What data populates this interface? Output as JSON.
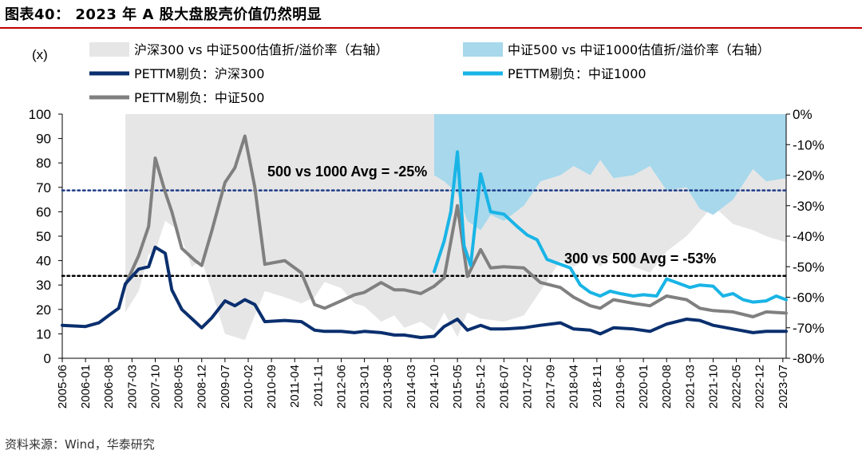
{
  "title": "图表40：  2023 年 A 股大盘股壳价值仍然明显",
  "source": "资料来源：Wind，华泰研究",
  "chart_data": {
    "type": "line",
    "y_unit_label": "(x)",
    "ylim": [
      0,
      100
    ],
    "yticks": [
      0,
      10,
      20,
      30,
      40,
      50,
      60,
      70,
      80,
      90,
      100
    ],
    "y2lim": [
      -80,
      0
    ],
    "y2ticks": [
      "0%",
      "-10%",
      "-20%",
      "-30%",
      "-40%",
      "-50%",
      "-60%",
      "-70%",
      "-80%"
    ],
    "x_start": "2005-06",
    "x_end": "2023-08",
    "xticks": [
      "2005-06",
      "2006-01",
      "2006-08",
      "2007-03",
      "2007-10",
      "2008-05",
      "2008-12",
      "2009-07",
      "2010-02",
      "2010-09",
      "2011-04",
      "2011-11",
      "2012-06",
      "2013-01",
      "2013-08",
      "2014-03",
      "2014-10",
      "2015-05",
      "2015-12",
      "2016-07",
      "2017-02",
      "2017-09",
      "2018-04",
      "2018-11",
      "2019-06",
      "2020-01",
      "2020-08",
      "2021-03",
      "2021-10",
      "2022-05",
      "2022-12",
      "2023-07"
    ],
    "colors": {
      "hs300": "#0a2f6e",
      "zz1000": "#19b4e6",
      "zz500": "#808080",
      "area1": "#e6e6e6",
      "area2": "#a7d8ec",
      "avg_line": "#1f3c88",
      "avg_line2": "#000000"
    },
    "series": [
      {
        "name": "PETTM剔负：沪深300",
        "axis": "left",
        "points": [
          [
            "2005-06",
            13.5
          ],
          [
            "2006-01",
            13.0
          ],
          [
            "2006-05",
            14.5
          ],
          [
            "2006-08",
            17.5
          ],
          [
            "2006-11",
            20.5
          ],
          [
            "2007-01",
            30.5
          ],
          [
            "2007-05",
            36.5
          ],
          [
            "2007-08",
            37.5
          ],
          [
            "2007-10",
            45.5
          ],
          [
            "2008-01",
            43.0
          ],
          [
            "2008-03",
            28.0
          ],
          [
            "2008-06",
            20.0
          ],
          [
            "2008-10",
            15.0
          ],
          [
            "2008-12",
            12.5
          ],
          [
            "2009-03",
            16.5
          ],
          [
            "2009-07",
            23.5
          ],
          [
            "2009-10",
            21.5
          ],
          [
            "2010-01",
            24.0
          ],
          [
            "2010-04",
            22.0
          ],
          [
            "2010-07",
            15.0
          ],
          [
            "2011-01",
            15.5
          ],
          [
            "2011-06",
            15.0
          ],
          [
            "2011-10",
            11.5
          ],
          [
            "2012-01",
            11.0
          ],
          [
            "2012-06",
            11.0
          ],
          [
            "2012-10",
            10.5
          ],
          [
            "2013-01",
            11.0
          ],
          [
            "2013-06",
            10.5
          ],
          [
            "2013-10",
            9.5
          ],
          [
            "2014-01",
            9.5
          ],
          [
            "2014-06",
            8.5
          ],
          [
            "2014-10",
            9.0
          ],
          [
            "2015-01",
            13.0
          ],
          [
            "2015-05",
            16.0
          ],
          [
            "2015-08",
            11.5
          ],
          [
            "2015-12",
            13.5
          ],
          [
            "2016-03",
            12.0
          ],
          [
            "2016-07",
            12.0
          ],
          [
            "2017-01",
            12.5
          ],
          [
            "2017-06",
            13.5
          ],
          [
            "2017-12",
            14.5
          ],
          [
            "2018-04",
            12.0
          ],
          [
            "2018-09",
            11.5
          ],
          [
            "2018-12",
            10.0
          ],
          [
            "2019-04",
            12.5
          ],
          [
            "2019-10",
            12.0
          ],
          [
            "2020-03",
            11.0
          ],
          [
            "2020-08",
            14.0
          ],
          [
            "2021-02",
            16.0
          ],
          [
            "2021-06",
            15.5
          ],
          [
            "2021-10",
            13.5
          ],
          [
            "2022-04",
            12.0
          ],
          [
            "2022-10",
            10.5
          ],
          [
            "2023-02",
            11.0
          ],
          [
            "2023-08",
            11.0
          ]
        ]
      },
      {
        "name": "PETTM剔负：中证1000",
        "axis": "left",
        "points": [
          [
            "2014-10",
            35.5
          ],
          [
            "2015-01",
            48.0
          ],
          [
            "2015-03",
            60.0
          ],
          [
            "2015-05",
            84.5
          ],
          [
            "2015-07",
            46.0
          ],
          [
            "2015-09",
            38.0
          ],
          [
            "2015-12",
            75.5
          ],
          [
            "2016-03",
            60.0
          ],
          [
            "2016-07",
            59.0
          ],
          [
            "2016-11",
            54.0
          ],
          [
            "2017-02",
            50.5
          ],
          [
            "2017-05",
            48.5
          ],
          [
            "2017-08",
            40.5
          ],
          [
            "2017-11",
            39.0
          ],
          [
            "2018-03",
            37.0
          ],
          [
            "2018-06",
            30.0
          ],
          [
            "2018-09",
            27.0
          ],
          [
            "2018-12",
            25.5
          ],
          [
            "2019-03",
            27.5
          ],
          [
            "2019-06",
            26.5
          ],
          [
            "2019-10",
            25.5
          ],
          [
            "2020-01",
            26.0
          ],
          [
            "2020-05",
            25.5
          ],
          [
            "2020-08",
            32.5
          ],
          [
            "2020-11",
            31.0
          ],
          [
            "2021-03",
            29.0
          ],
          [
            "2021-06",
            30.0
          ],
          [
            "2021-10",
            29.5
          ],
          [
            "2022-01",
            25.5
          ],
          [
            "2022-04",
            26.5
          ],
          [
            "2022-07",
            24.0
          ],
          [
            "2022-10",
            23.0
          ],
          [
            "2023-02",
            23.5
          ],
          [
            "2023-05",
            25.5
          ],
          [
            "2023-08",
            24.0
          ]
        ]
      },
      {
        "name": "PETTM剔负：中证500",
        "axis": "left",
        "points": [
          [
            "2007-01",
            30.0
          ],
          [
            "2007-05",
            42.0
          ],
          [
            "2007-08",
            54.0
          ],
          [
            "2007-10",
            82.0
          ],
          [
            "2008-01",
            68.0
          ],
          [
            "2008-03",
            60.0
          ],
          [
            "2008-06",
            45.0
          ],
          [
            "2008-10",
            40.0
          ],
          [
            "2008-12",
            38.0
          ],
          [
            "2009-03",
            52.0
          ],
          [
            "2009-07",
            72.0
          ],
          [
            "2009-10",
            78.0
          ],
          [
            "2010-01",
            91.0
          ],
          [
            "2010-04",
            70.0
          ],
          [
            "2010-07",
            38.5
          ],
          [
            "2011-01",
            40.0
          ],
          [
            "2011-06",
            35.0
          ],
          [
            "2011-10",
            22.0
          ],
          [
            "2012-01",
            20.5
          ],
          [
            "2012-06",
            23.5
          ],
          [
            "2012-10",
            26.0
          ],
          [
            "2013-01",
            27.0
          ],
          [
            "2013-06",
            31.0
          ],
          [
            "2013-10",
            28.0
          ],
          [
            "2014-01",
            28.0
          ],
          [
            "2014-06",
            26.5
          ],
          [
            "2014-10",
            29.5
          ],
          [
            "2015-01",
            33.0
          ],
          [
            "2015-05",
            62.5
          ],
          [
            "2015-08",
            33.5
          ],
          [
            "2015-12",
            44.5
          ],
          [
            "2016-03",
            37.0
          ],
          [
            "2016-07",
            37.5
          ],
          [
            "2017-01",
            37.0
          ],
          [
            "2017-06",
            31.0
          ],
          [
            "2017-12",
            29.0
          ],
          [
            "2018-04",
            25.0
          ],
          [
            "2018-09",
            21.5
          ],
          [
            "2018-12",
            20.5
          ],
          [
            "2019-04",
            24.0
          ],
          [
            "2019-10",
            22.5
          ],
          [
            "2020-03",
            21.5
          ],
          [
            "2020-08",
            25.5
          ],
          [
            "2021-02",
            24.0
          ],
          [
            "2021-06",
            20.5
          ],
          [
            "2021-10",
            19.5
          ],
          [
            "2022-04",
            19.0
          ],
          [
            "2022-10",
            17.0
          ],
          [
            "2023-02",
            19.0
          ],
          [
            "2023-08",
            18.5
          ]
        ]
      }
    ],
    "areas": [
      {
        "name": "沪深300 vs 中证500估值折/溢价率（右轴）",
        "axis": "right",
        "points": [
          [
            "2007-01",
            -65
          ],
          [
            "2007-05",
            -58
          ],
          [
            "2007-08",
            -46
          ],
          [
            "2007-10",
            -45
          ],
          [
            "2008-01",
            -35
          ],
          [
            "2008-05",
            -38
          ],
          [
            "2008-09",
            -50
          ],
          [
            "2008-12",
            -48
          ],
          [
            "2009-03",
            -58
          ],
          [
            "2009-07",
            -72
          ],
          [
            "2009-10",
            -73
          ],
          [
            "2010-01",
            -74
          ],
          [
            "2010-04",
            -66
          ],
          [
            "2010-07",
            -58
          ],
          [
            "2011-01",
            -60
          ],
          [
            "2011-06",
            -62
          ],
          [
            "2011-10",
            -60
          ],
          [
            "2012-01",
            -55
          ],
          [
            "2012-06",
            -57
          ],
          [
            "2012-10",
            -62
          ],
          [
            "2013-01",
            -63
          ],
          [
            "2013-06",
            -68
          ],
          [
            "2013-10",
            -66
          ],
          [
            "2014-01",
            -70
          ],
          [
            "2014-06",
            -68
          ],
          [
            "2014-10",
            -71
          ],
          [
            "2015-01",
            -65
          ],
          [
            "2015-05",
            -73
          ],
          [
            "2015-08",
            -65
          ],
          [
            "2015-12",
            -67
          ],
          [
            "2016-07",
            -68
          ],
          [
            "2017-01",
            -66
          ],
          [
            "2017-06",
            -58
          ],
          [
            "2017-12",
            -48
          ],
          [
            "2018-04",
            -50
          ],
          [
            "2018-09",
            -47
          ],
          [
            "2018-12",
            -50
          ],
          [
            "2019-04",
            -45
          ],
          [
            "2019-10",
            -50
          ],
          [
            "2020-03",
            -52
          ],
          [
            "2020-08",
            -45
          ],
          [
            "2021-02",
            -40
          ],
          [
            "2021-06",
            -35
          ],
          [
            "2021-10",
            -30
          ],
          [
            "2022-04",
            -36
          ],
          [
            "2022-10",
            -38
          ],
          [
            "2023-02",
            -40
          ],
          [
            "2023-08",
            -42
          ]
        ]
      },
      {
        "name": "中证500 vs 中证1000估值折/溢价率（右轴）",
        "axis": "right",
        "points": [
          [
            "2014-10",
            -20
          ],
          [
            "2015-01",
            -22
          ],
          [
            "2015-05",
            -26
          ],
          [
            "2015-08",
            -35
          ],
          [
            "2015-12",
            -38
          ],
          [
            "2016-03",
            -33
          ],
          [
            "2016-07",
            -35
          ],
          [
            "2017-01",
            -30
          ],
          [
            "2017-06",
            -22
          ],
          [
            "2017-12",
            -20
          ],
          [
            "2018-04",
            -17
          ],
          [
            "2018-09",
            -20
          ],
          [
            "2018-12",
            -15
          ],
          [
            "2019-04",
            -21
          ],
          [
            "2019-10",
            -20
          ],
          [
            "2020-03",
            -17
          ],
          [
            "2020-08",
            -25
          ],
          [
            "2021-02",
            -24
          ],
          [
            "2021-06",
            -31
          ],
          [
            "2021-10",
            -33
          ],
          [
            "2022-04",
            -28
          ],
          [
            "2022-10",
            -18
          ],
          [
            "2023-02",
            -22
          ],
          [
            "2023-08",
            -21
          ]
        ]
      }
    ],
    "ref_lines": [
      {
        "label": "500 vs 1000 Avg = -25%",
        "value": -25,
        "axis": "right",
        "style": "dotted-blue"
      },
      {
        "label": "300 vs 500 Avg = -53%",
        "value": -53,
        "axis": "right",
        "style": "dotted-black"
      }
    ],
    "legend": [
      "沪深300 vs 中证500估值折/溢价率（右轴）",
      "中证500 vs 中证1000估值折/溢价率（右轴）",
      "PETTM剔负：沪深300",
      "PETTM剔负：中证1000",
      "PETTM剔负：中证500"
    ],
    "legend_placement": "top"
  }
}
